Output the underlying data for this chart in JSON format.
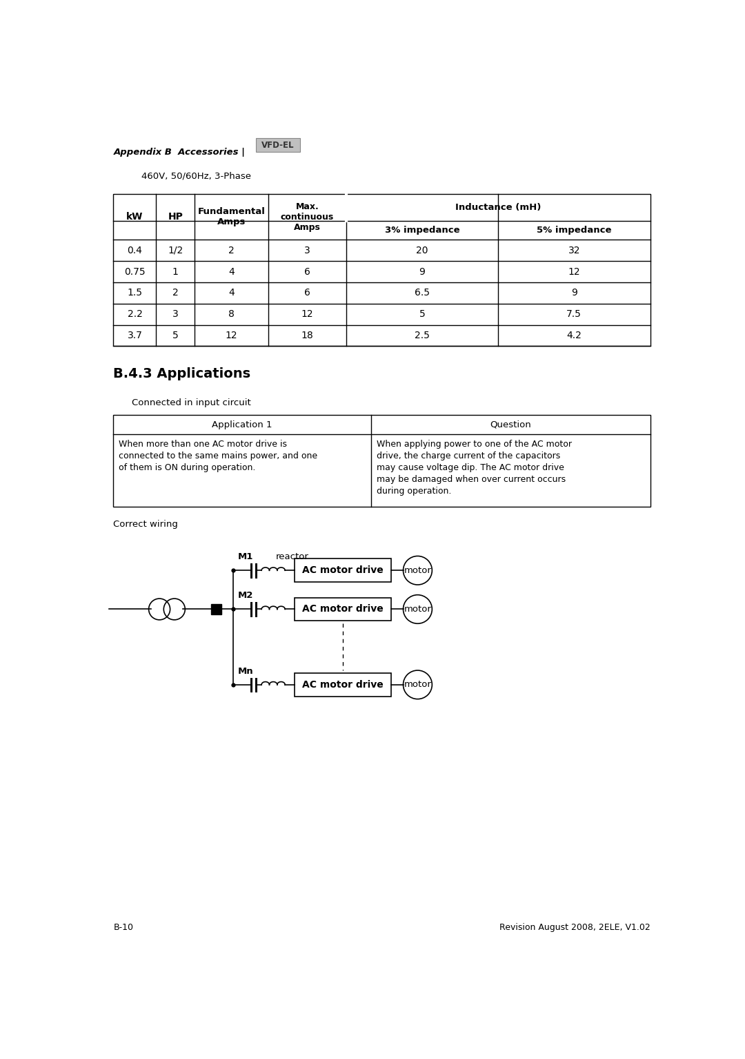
{
  "page_title": "Appendix B  Accessories |",
  "vfd_label": "VFD-EL",
  "subtitle": "460V, 50/60Hz, 3-Phase",
  "table1": {
    "rows": [
      [
        "0.4",
        "1/2",
        "2",
        "3",
        "20",
        "32"
      ],
      [
        "0.75",
        "1",
        "4",
        "6",
        "9",
        "12"
      ],
      [
        "1.5",
        "2",
        "4",
        "6",
        "6.5",
        "9"
      ],
      [
        "2.2",
        "3",
        "8",
        "12",
        "5",
        "7.5"
      ],
      [
        "3.7",
        "5",
        "12",
        "18",
        "2.5",
        "4.2"
      ]
    ]
  },
  "section_title": "B.4.3 Applications",
  "connected_text": "Connected in input circuit",
  "app_table": {
    "col1_header": "Application 1",
    "col2_header": "Question",
    "col1_body": "When more than one AC motor drive is\nconnected to the same mains power, and one\nof them is ON during operation.",
    "col2_body": "When applying power to one of the AC motor\ndrive, the charge current of the capacitors\nmay cause voltage dip. The AC motor drive\nmay be damaged when over current occurs\nduring operation."
  },
  "correct_wiring": "Correct wiring",
  "reactor_label": "reactor",
  "ac_drive_label": "AC motor drive",
  "motor_label": "motor",
  "footer_left": "B-10",
  "footer_right": "Revision August 2008, 2ELE, V1.02",
  "bg_color": "#ffffff",
  "text_color": "#000000",
  "table_line_color": "#000000"
}
